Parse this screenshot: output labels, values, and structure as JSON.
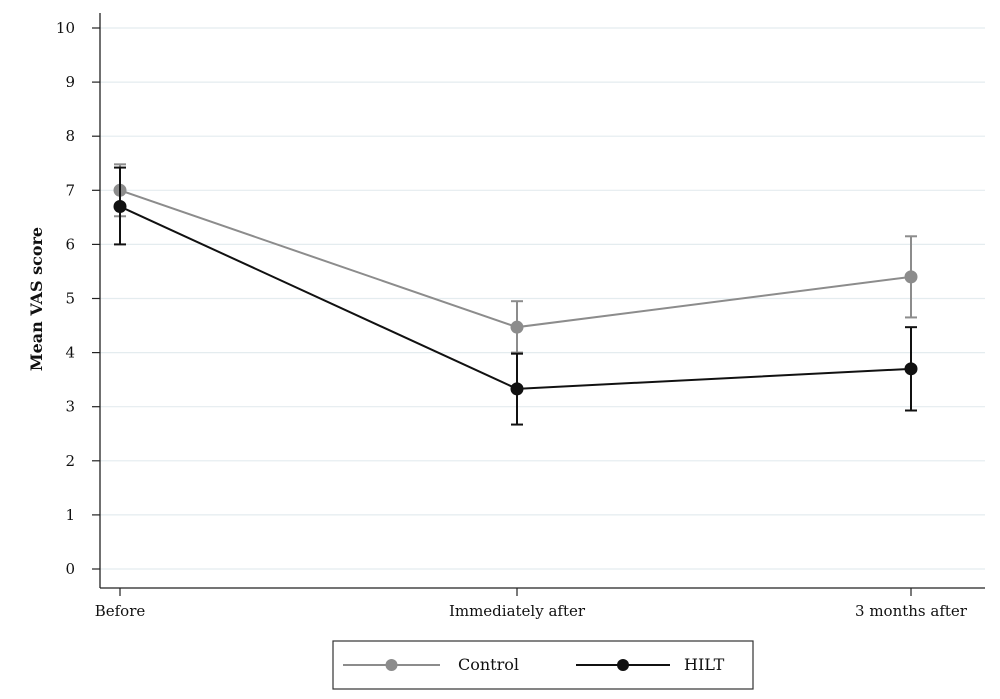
{
  "chart_data": {
    "type": "line",
    "categories": [
      "Before",
      "Immediately after",
      "3 months after"
    ],
    "ylabel": "Mean VAS score",
    "xlabel": "",
    "ylim": [
      0,
      10
    ],
    "yticks": [
      "0",
      "1",
      "2",
      "3",
      "4",
      "5",
      "6",
      "7",
      "8",
      "9",
      "10"
    ],
    "grid": "horizontal",
    "legend_position": "bottom",
    "series": [
      {
        "name": "Control",
        "color": "#8c8c8c",
        "values": [
          7.0,
          4.47,
          5.4
        ],
        "error_low": [
          6.52,
          4.0,
          4.65
        ],
        "error_high": [
          7.48,
          4.95,
          6.15
        ]
      },
      {
        "name": "HILT",
        "color": "#111111",
        "values": [
          6.7,
          3.33,
          3.7
        ],
        "error_low": [
          6.0,
          2.67,
          2.93
        ],
        "error_high": [
          7.42,
          3.98,
          4.47
        ]
      }
    ]
  }
}
